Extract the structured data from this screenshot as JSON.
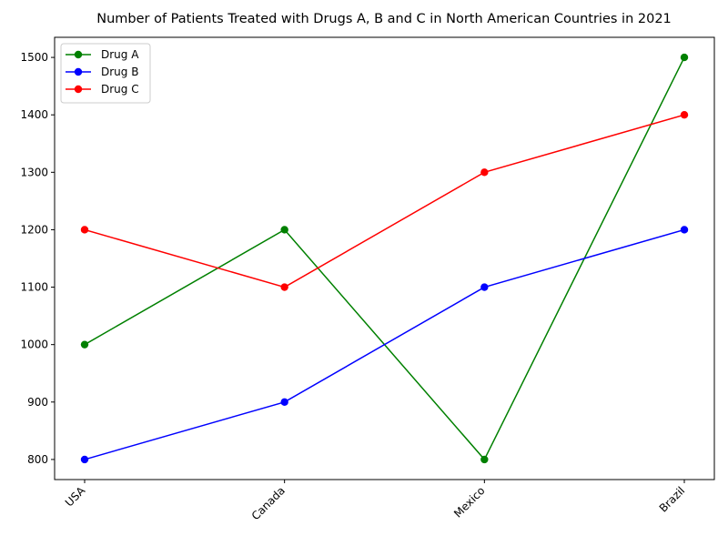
{
  "chart_data": {
    "type": "line",
    "title": "Number of Patients Treated with Drugs A, B and C in North American Countries in 2021",
    "xlabel": "",
    "ylabel": "",
    "categories": [
      "USA",
      "Canada",
      "Mexico",
      "Brazil"
    ],
    "series": [
      {
        "name": "Drug A",
        "color": "#008000",
        "values": [
          1000,
          1200,
          800,
          1500
        ]
      },
      {
        "name": "Drug B",
        "color": "#0000ff",
        "values": [
          800,
          900,
          1100,
          1200
        ]
      },
      {
        "name": "Drug C",
        "color": "#ff0000",
        "values": [
          1200,
          1100,
          1300,
          1400
        ]
      }
    ],
    "yticks": [
      800,
      900,
      1000,
      1100,
      1200,
      1300,
      1400,
      1500
    ],
    "ylim": [
      765,
      1535
    ],
    "grid": false,
    "legend": "top-left",
    "marker": "circle",
    "xtick_rotation": 45
  }
}
